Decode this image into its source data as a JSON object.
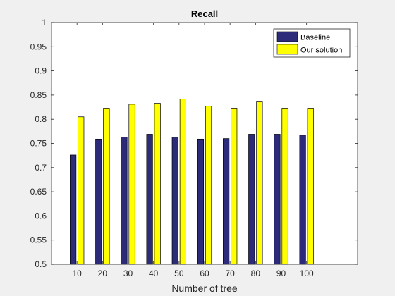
{
  "figure": {
    "background": "#f0f0f0",
    "axes_background": "#ffffff"
  },
  "chart_data": {
    "type": "bar",
    "title": "Recall",
    "xlabel": "Number of tree",
    "ylabel": "",
    "categories": [
      "10",
      "20",
      "30",
      "40",
      "50",
      "60",
      "70",
      "80",
      "90",
      "100"
    ],
    "x_values": [
      10,
      20,
      30,
      40,
      50,
      60,
      70,
      80,
      90,
      100
    ],
    "xlim": [
      0,
      120
    ],
    "ylim": [
      0.5,
      1
    ],
    "yticks": [
      "0.5",
      "0.55",
      "0.6",
      "0.65",
      "0.7",
      "0.75",
      "0.8",
      "0.85",
      "0.9",
      "0.95",
      "1"
    ],
    "grid": false,
    "legend_position": "top-right",
    "series": [
      {
        "name": "Baseline",
        "color": "#2b2b7a",
        "values": [
          0.726,
          0.759,
          0.763,
          0.769,
          0.763,
          0.759,
          0.76,
          0.769,
          0.769,
          0.767
        ]
      },
      {
        "name": "Our solution",
        "color": "#ffff00",
        "values": [
          0.805,
          0.823,
          0.831,
          0.833,
          0.842,
          0.827,
          0.823,
          0.836,
          0.823,
          0.823
        ]
      }
    ]
  }
}
